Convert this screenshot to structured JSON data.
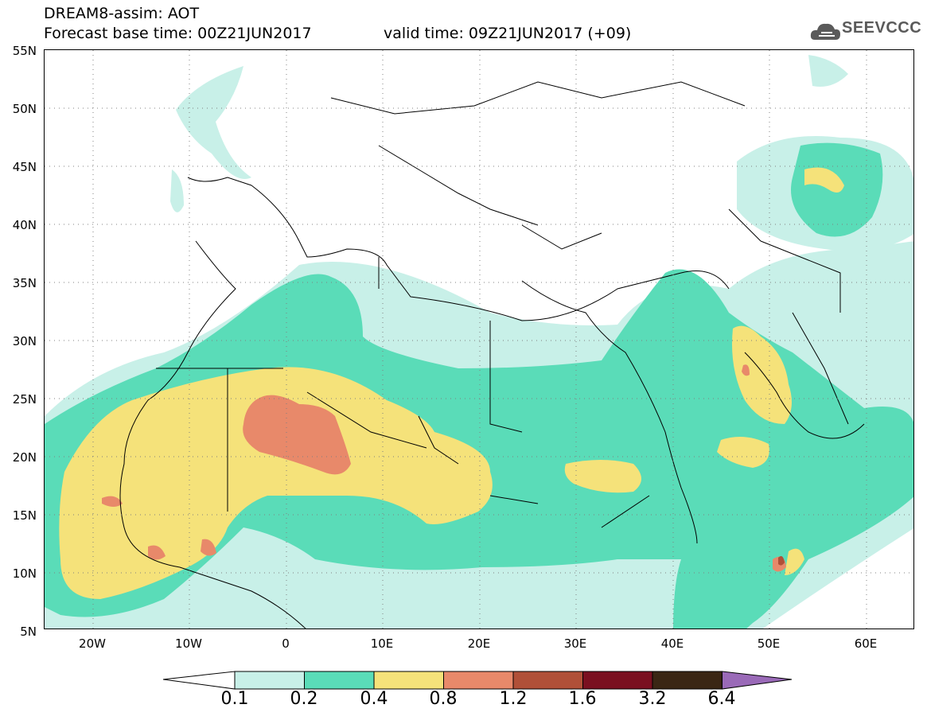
{
  "header": {
    "title": "DREAM8-assim: AOT",
    "base_time": "Forecast base time: 00Z21JUN2017",
    "valid_time": "valid time: 09Z21JUN2017 (+09)",
    "logo_text": "SEEVCCC"
  },
  "axes": {
    "lat_labels": [
      "55N",
      "50N",
      "45N",
      "40N",
      "35N",
      "30N",
      "25N",
      "20N",
      "15N",
      "10N",
      "5N"
    ],
    "lon_labels": [
      "20W",
      "10W",
      "0",
      "10E",
      "20E",
      "30E",
      "40E",
      "50E",
      "60E"
    ]
  },
  "colorbar": {
    "labels": [
      "0.1",
      "0.2",
      "0.4",
      "0.8",
      "1.2",
      "1.6",
      "3.2",
      "6.4"
    ],
    "colors": [
      "#c8f0e8",
      "#5adcb8",
      "#f5e27a",
      "#e8896a",
      "#b05038",
      "#7a1020",
      "#3a2614",
      "#9a6ab8"
    ]
  },
  "field_colors": {
    "aot_0.1": "#c8f0e8",
    "aot_0.2": "#5adcb8",
    "aot_0.4": "#f5e27a",
    "aot_0.8": "#e8896a",
    "aot_1.2": "#b05038"
  }
}
